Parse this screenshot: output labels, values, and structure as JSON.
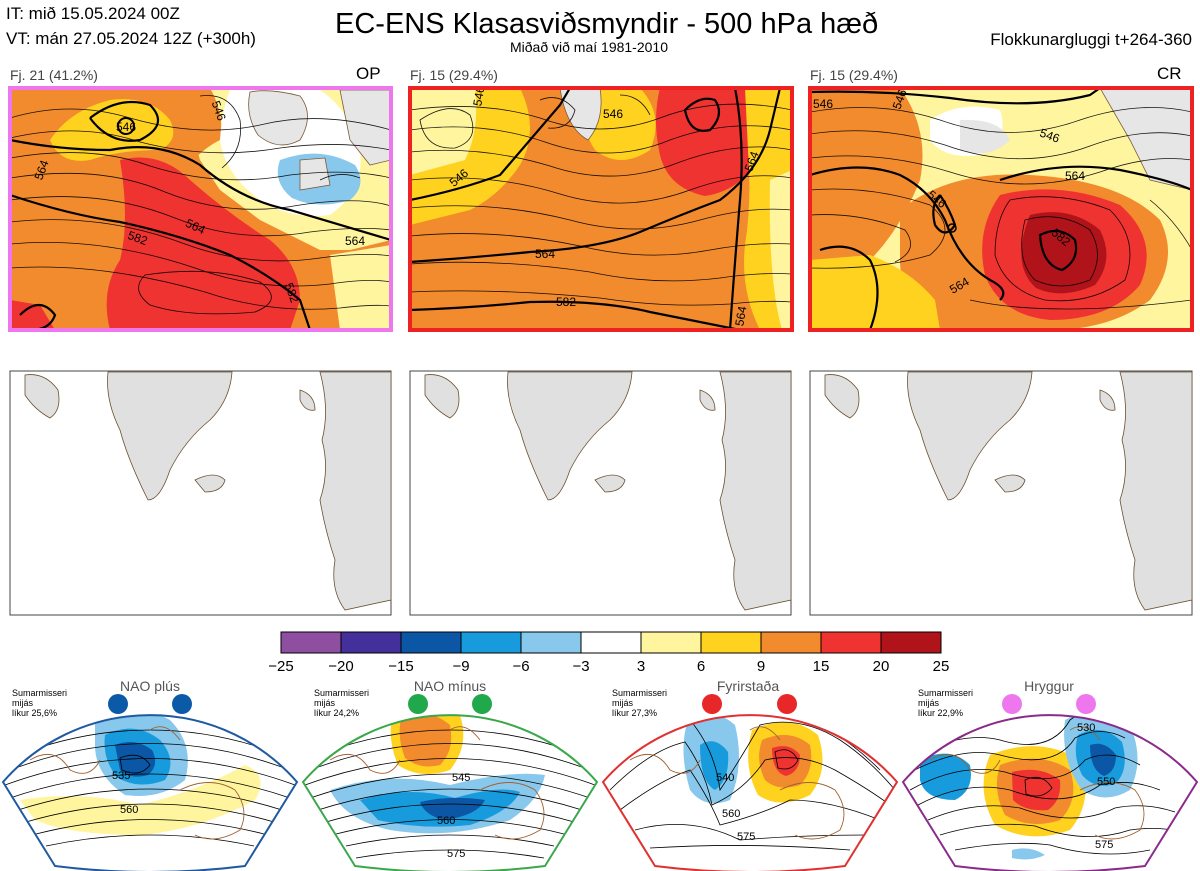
{
  "header": {
    "initial_time": "IT: mið 15.05.2024 00Z",
    "valid_time": "VT: mán 27.05.2024 12Z  (+300h)",
    "title": "EC-ENS Klasasviðsmyndir - 500 hPa hæð",
    "subtitle": "Miðað við maí 1981-2010",
    "window": "Flokkunargluggi t+264-360"
  },
  "panels": [
    {
      "label": "Fj. 21 (41.2%)",
      "tag": "OP",
      "border_color": "#ee77ee",
      "contour_labels": [
        "546",
        "564",
        "564",
        "582",
        "582",
        "564",
        "546"
      ]
    },
    {
      "label": "Fj. 15 (29.4%)",
      "tag": "",
      "border_color": "#ee2222",
      "contour_labels": [
        "546",
        "546",
        "546",
        "564",
        "564",
        "582",
        "564"
      ]
    },
    {
      "label": "Fj. 15 (29.4%)",
      "tag": "CR",
      "border_color": "#ee2222",
      "contour_labels": [
        "546",
        "546",
        "546",
        "564",
        "546",
        "582",
        "564"
      ]
    }
  ],
  "colorbar": {
    "ticks": [
      "−25",
      "−20",
      "−15",
      "−9",
      "−6",
      "−3",
      "3",
      "6",
      "9",
      "15",
      "20",
      "25"
    ],
    "colors": [
      "#8e4fa0",
      "#43309a",
      "#0b57a5",
      "#189bdc",
      "#88c8ec",
      "#ffffff",
      "#fff59e",
      "#ffd21f",
      "#f28a2e",
      "#ee3331",
      "#b0141a"
    ]
  },
  "regimes": [
    {
      "name": "NAO plús",
      "season": "Sumarmisseri",
      "mean": "mijás",
      "likelihood": "líkur 25,6%",
      "dot_color": "#0b5aa8",
      "border_color": "#1f5aa0",
      "contour_labels": [
        "535",
        "560"
      ]
    },
    {
      "name": "NAO mínus",
      "season": "Sumarmisseri",
      "mean": "mijás",
      "likelihood": "líkur 24,2%",
      "dot_color": "#20a84a",
      "border_color": "#3aa84a",
      "contour_labels": [
        "545",
        "560",
        "575"
      ]
    },
    {
      "name": "Fyrirstaða",
      "season": "Sumarmisseri",
      "mean": "mijás",
      "likelihood": "líkur 27,3%",
      "dot_color": "#e82828",
      "border_color": "#e03030",
      "contour_labels": [
        "540",
        "560",
        "575"
      ]
    },
    {
      "name": "Hryggur",
      "season": "Sumarmisseri",
      "mean": "mijás",
      "likelihood": "líkur 22,9%",
      "dot_color": "#ee77ee",
      "border_color": "#8a2a8a",
      "contour_labels": [
        "530",
        "550",
        "575"
      ]
    }
  ],
  "chart_data": {
    "type": "heatmap",
    "title": "EC-ENS Klasasviðsmyndir - 500 hPa hæð",
    "subtitle": "Miðað við maí 1981-2010",
    "colorbar_boundaries": [
      -25,
      -20,
      -15,
      -9,
      -6,
      -3,
      3,
      6,
      9,
      15,
      20,
      25
    ],
    "clusters": [
      {
        "label": "Fj. 21 (41.2%)",
        "members": 21,
        "probability_pct": 41.2,
        "tag": "OP",
        "contours": [
          546,
          564,
          582
        ]
      },
      {
        "label": "Fj. 15 (29.4%)",
        "members": 15,
        "probability_pct": 29.4,
        "tag": "",
        "contours": [
          546,
          564,
          582
        ]
      },
      {
        "label": "Fj. 15 (29.4%)",
        "members": 15,
        "probability_pct": 29.4,
        "tag": "CR",
        "contours": [
          546,
          564,
          582
        ]
      }
    ],
    "regimes": [
      {
        "name": "NAO plús",
        "likelihood_pct": 25.6
      },
      {
        "name": "NAO mínus",
        "likelihood_pct": 24.2
      },
      {
        "name": "Fyrirstaða",
        "likelihood_pct": 27.3
      },
      {
        "name": "Hryggur",
        "likelihood_pct": 22.9
      }
    ]
  }
}
